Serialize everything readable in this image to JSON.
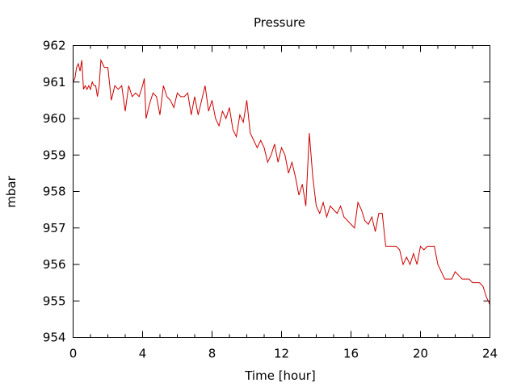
{
  "chart_data": {
    "type": "line",
    "title": "Pressure",
    "xlabel": "Time [hour]",
    "ylabel": "mbar",
    "xlim": [
      0,
      24
    ],
    "ylim": [
      954,
      962
    ],
    "xticks": [
      0,
      4,
      8,
      12,
      16,
      20,
      24
    ],
    "xtick_labels": [
      "0",
      "4",
      "8",
      "12",
      "16",
      "20",
      "24"
    ],
    "yticks": [
      954,
      955,
      956,
      957,
      958,
      959,
      960,
      961,
      962
    ],
    "ytick_labels": [
      "954",
      "955",
      "956",
      "957",
      "958",
      "959",
      "960",
      "961",
      "962"
    ],
    "x_minor_ticks_per_interval": 4,
    "grid": false,
    "legend": "none",
    "series": [
      {
        "color": "#cc0000",
        "x": [
          0.0,
          0.1,
          0.2,
          0.3,
          0.4,
          0.5,
          0.6,
          0.7,
          0.8,
          0.9,
          1.0,
          1.1,
          1.2,
          1.3,
          1.4,
          1.5,
          1.6,
          1.7,
          1.8,
          1.9,
          2.0,
          2.2,
          2.4,
          2.6,
          2.8,
          3.0,
          3.2,
          3.4,
          3.6,
          3.8,
          4.0,
          4.1,
          4.2,
          4.4,
          4.6,
          4.8,
          5.0,
          5.2,
          5.4,
          5.6,
          5.8,
          6.0,
          6.2,
          6.4,
          6.6,
          6.8,
          7.0,
          7.2,
          7.4,
          7.6,
          7.8,
          8.0,
          8.2,
          8.4,
          8.6,
          8.8,
          9.0,
          9.2,
          9.4,
          9.6,
          9.8,
          10.0,
          10.2,
          10.4,
          10.6,
          10.8,
          11.0,
          11.2,
          11.4,
          11.6,
          11.8,
          12.0,
          12.2,
          12.4,
          12.6,
          12.8,
          13.0,
          13.2,
          13.4,
          13.6,
          13.8,
          14.0,
          14.2,
          14.4,
          14.6,
          14.8,
          15.0,
          15.2,
          15.4,
          15.6,
          15.8,
          16.0,
          16.2,
          16.4,
          16.6,
          16.8,
          17.0,
          17.2,
          17.4,
          17.6,
          17.8,
          18.0,
          18.2,
          18.4,
          18.6,
          18.8,
          19.0,
          19.2,
          19.4,
          19.6,
          19.8,
          20.0,
          20.2,
          20.4,
          20.6,
          20.8,
          21.0,
          21.2,
          21.4,
          21.6,
          21.8,
          22.0,
          22.2,
          22.4,
          22.6,
          22.8,
          23.0,
          23.2,
          23.4,
          23.6,
          23.8,
          24.0
        ],
        "y": [
          961.0,
          961.1,
          961.4,
          961.5,
          961.3,
          961.6,
          960.8,
          960.9,
          960.8,
          960.9,
          960.8,
          961.0,
          960.9,
          960.9,
          960.6,
          960.9,
          961.6,
          961.5,
          961.4,
          961.4,
          961.4,
          960.5,
          960.9,
          960.8,
          960.9,
          960.2,
          960.9,
          960.6,
          960.7,
          960.6,
          960.9,
          961.1,
          960.0,
          960.4,
          960.7,
          960.6,
          960.1,
          960.9,
          960.6,
          960.5,
          960.3,
          960.7,
          960.6,
          960.6,
          960.7,
          960.1,
          960.6,
          960.1,
          960.5,
          960.9,
          960.2,
          960.5,
          960.0,
          959.8,
          960.2,
          960.0,
          960.3,
          959.7,
          959.5,
          960.1,
          959.9,
          960.5,
          959.6,
          959.4,
          959.2,
          959.4,
          959.2,
          958.8,
          959.0,
          959.3,
          958.8,
          959.2,
          959.0,
          958.5,
          958.8,
          958.4,
          957.9,
          958.2,
          957.6,
          959.6,
          958.4,
          957.6,
          957.4,
          957.7,
          957.3,
          957.6,
          957.5,
          957.4,
          957.6,
          957.3,
          957.2,
          957.1,
          957.0,
          957.7,
          957.5,
          957.2,
          957.1,
          957.3,
          956.9,
          957.4,
          957.4,
          956.5,
          956.5,
          956.5,
          956.5,
          956.4,
          956.0,
          956.2,
          956.0,
          956.3,
          956.0,
          956.5,
          956.4,
          956.5,
          956.5,
          956.5,
          956.0,
          955.8,
          955.6,
          955.6,
          955.6,
          955.8,
          955.7,
          955.6,
          955.6,
          955.6,
          955.5,
          955.5,
          955.5,
          955.4,
          955.1,
          954.9
        ]
      }
    ]
  }
}
